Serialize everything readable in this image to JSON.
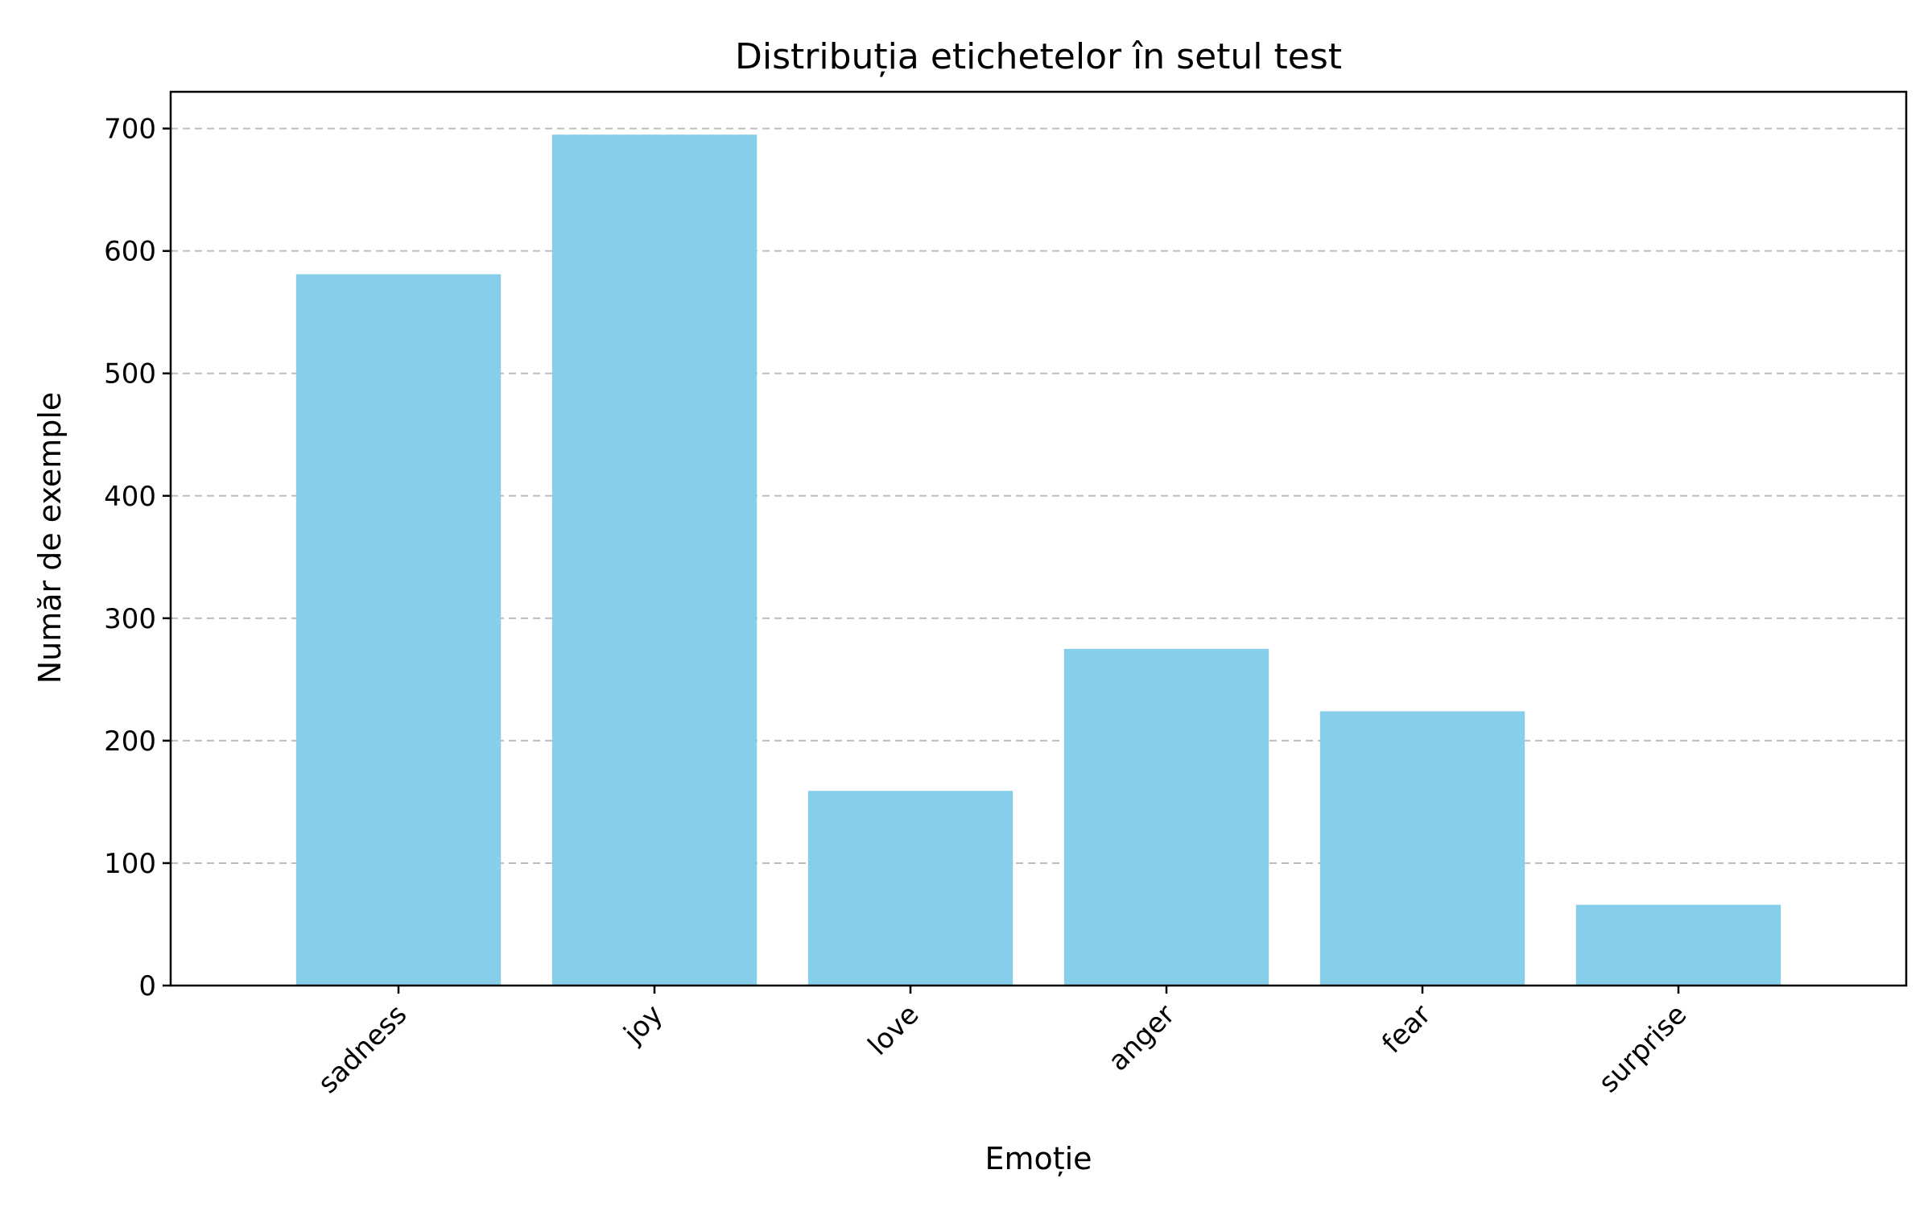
{
  "chart_data": {
    "type": "bar",
    "title": "Distribuția etichetelor în setul test",
    "xlabel": "Emoție",
    "ylabel": "Număr de exemple",
    "categories": [
      "sadness",
      "joy",
      "love",
      "anger",
      "fear",
      "surprise"
    ],
    "values": [
      581,
      695,
      159,
      275,
      224,
      66
    ],
    "ylim": [
      0,
      730
    ],
    "yticks": [
      0,
      100,
      200,
      300,
      400,
      500,
      600,
      700
    ],
    "grid": "y-dashed",
    "bar_color": "#87CEEB",
    "grid_color": "#bdbdbd"
  }
}
